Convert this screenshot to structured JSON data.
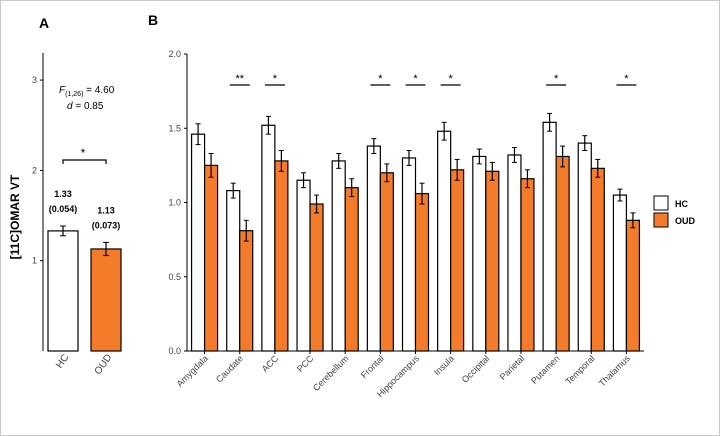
{
  "panel_a": {
    "panel_label": "A",
    "ylabel": "[11C]OMAR VT",
    "y_ticks": [
      "1",
      "2",
      "3"
    ],
    "stat_F_prefix": "F",
    "stat_F_sub": "(1,26)",
    "stat_F_suffix": " = 4.60",
    "stat_d_prefix": "d",
    "stat_d_suffix": " = 0.85",
    "sig_label": "*"
  },
  "panel_b": {
    "panel_label": "B",
    "y_ticks": [
      "0.0",
      "0.5",
      "1.0",
      "1.5",
      "2.0"
    ],
    "legend_hc": "HC",
    "legend_oud": "OUD"
  },
  "colors": {
    "hc": "#ffffff",
    "oud": "#f47b2a",
    "edge": "#000000"
  },
  "chart_data": [
    {
      "type": "bar",
      "panel": "A",
      "categories": [
        "HC",
        "OUD"
      ],
      "values": [
        1.33,
        1.13
      ],
      "errors": [
        0.054,
        0.073
      ],
      "value_labels": [
        "1.33",
        "1.13"
      ],
      "sd_labels": [
        "(0.054)",
        "(0.073)"
      ],
      "ylabel": "[11C]OMAR VT",
      "ylim": [
        0,
        3.3
      ],
      "significance": [
        {
          "between": [
            "HC",
            "OUD"
          ],
          "label": "*"
        }
      ]
    },
    {
      "type": "bar",
      "panel": "B",
      "categories": [
        "Amygdala",
        "Caudate",
        "ACC",
        "PCC",
        "Cerebellum",
        "Frontal",
        "Hippocampus",
        "Insula",
        "Occipital",
        "Parietal",
        "Putamen",
        "Temporal",
        "Thalamus"
      ],
      "series": [
        {
          "name": "HC",
          "values": [
            1.46,
            1.08,
            1.52,
            1.15,
            1.28,
            1.38,
            1.3,
            1.48,
            1.31,
            1.32,
            1.54,
            1.4,
            1.05
          ],
          "errors": [
            0.07,
            0.05,
            0.06,
            0.05,
            0.05,
            0.05,
            0.05,
            0.06,
            0.05,
            0.05,
            0.06,
            0.05,
            0.04
          ]
        },
        {
          "name": "OUD",
          "values": [
            1.25,
            0.81,
            1.28,
            0.99,
            1.1,
            1.2,
            1.06,
            1.22,
            1.21,
            1.16,
            1.31,
            1.23,
            0.88
          ],
          "errors": [
            0.08,
            0.07,
            0.07,
            0.06,
            0.06,
            0.06,
            0.07,
            0.07,
            0.06,
            0.06,
            0.07,
            0.06,
            0.05
          ]
        }
      ],
      "ylim": [
        0,
        2.0
      ],
      "significance": [
        "",
        "**",
        "*",
        "",
        "",
        "*",
        "*",
        "*",
        "",
        "",
        "*",
        "",
        "*"
      ],
      "legend": "right"
    }
  ]
}
